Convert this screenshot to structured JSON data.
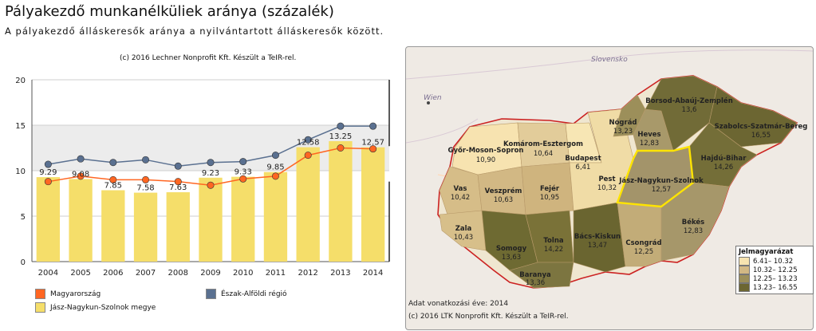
{
  "title": "Pályakezdő munkanélküliek aránya (százalék)",
  "subtitle": "A pályakezdő álláskeresők aránya a nyilvántartott álláskeresők között.",
  "chart_credit": "(c) 2016 Lechner Nonprofit Kft. Készült a TeIR-rel.",
  "chart_data": {
    "type": "bar",
    "categories": [
      "2004",
      "2005",
      "2006",
      "2007",
      "2008",
      "2009",
      "2010",
      "2011",
      "2012",
      "2013",
      "2014"
    ],
    "ylim": [
      0,
      20
    ],
    "yticks": [
      0,
      5,
      10,
      15,
      20
    ],
    "series": [
      {
        "name": "Jász-Nagykun-Szolnok megye",
        "type": "bar",
        "color": "#f5de6a",
        "values": [
          9.29,
          9.08,
          7.85,
          7.58,
          7.63,
          9.23,
          9.33,
          9.85,
          12.58,
          13.25,
          12.57
        ]
      },
      {
        "name": "Magyarország",
        "type": "line",
        "color": "#ff6622",
        "values": [
          8.8,
          9.4,
          9.0,
          9.0,
          8.8,
          8.4,
          9.1,
          9.4,
          11.7,
          12.5,
          12.4
        ]
      },
      {
        "name": "Észak-Alföldi régió",
        "type": "line",
        "color": "#5a7090",
        "values": [
          10.7,
          11.3,
          10.9,
          11.2,
          10.5,
          10.9,
          11.0,
          11.7,
          13.4,
          14.9,
          14.9
        ]
      }
    ],
    "data_labels": [
      "9.29",
      "9.08",
      "7.85",
      "7.58",
      "7.63",
      "9.23",
      "9.33",
      "9.85",
      "12.58",
      "13.25",
      "12.57"
    ]
  },
  "legend": [
    {
      "label": "Magyarország",
      "color": "#ff6622"
    },
    {
      "label": "Észak-Alföldi régió",
      "color": "#5a7090"
    },
    {
      "label": "Jász-Nagykun-Szolnok megye",
      "color": "#f5de6a"
    }
  ],
  "map": {
    "country_labels": [
      "Slovensko",
      "Wien"
    ],
    "counties": [
      {
        "name": "Győr-Moson-Sopron",
        "value": "10,90",
        "color": "#f7e3b0"
      },
      {
        "name": "Komárom-Esztergom",
        "value": "10,64",
        "color": "#e2cc9a"
      },
      {
        "name": "Vas",
        "value": "10,42",
        "color": "#d6bd88"
      },
      {
        "name": "Veszprém",
        "value": "10,63",
        "color": "#d2b884"
      },
      {
        "name": "Fejér",
        "value": "10,95",
        "color": "#cfb47e"
      },
      {
        "name": "Zala",
        "value": "10,43",
        "color": "#d7bf8a"
      },
      {
        "name": "Somogy",
        "value": "13,63",
        "color": "#6e6a32"
      },
      {
        "name": "Tolna",
        "value": "14,22",
        "color": "#7a7238"
      },
      {
        "name": "Baranya",
        "value": "13,36",
        "color": "#7c7540"
      },
      {
        "name": "Budapest",
        "value": "6,41",
        "color": "#f7e6b4"
      },
      {
        "name": "Pest",
        "value": "10,32",
        "color": "#f0dca6"
      },
      {
        "name": "Nógrád",
        "value": "13,23",
        "color": "#9c8f5a"
      },
      {
        "name": "Heves",
        "value": "12,83",
        "color": "#a8996a"
      },
      {
        "name": "Borsod-Abaúj-Zemplén",
        "value": "13,6",
        "color": "#716b37"
      },
      {
        "name": "Szabolcs-Szatmár-Bereg",
        "value": "16,55",
        "color": "#6c6632"
      },
      {
        "name": "Hajdú-Bihar",
        "value": "14,26",
        "color": "#746e38"
      },
      {
        "name": "Jász-Nagykun-Szolnok",
        "value": "12,57",
        "color": "#a3946a"
      },
      {
        "name": "Bács-Kiskun",
        "value": "13,47",
        "color": "#6a6530"
      },
      {
        "name": "Csongrád",
        "value": "12,25",
        "color": "#c2ac78"
      },
      {
        "name": "Békés",
        "value": "12,83",
        "color": "#a6976a"
      }
    ],
    "legend_title": "Jelmagyarázat",
    "legend_items": [
      {
        "label": "6.41– 10.32",
        "color": "#f7e3b0"
      },
      {
        "label": "10.32– 12.25",
        "color": "#d2b884"
      },
      {
        "label": "12.25– 13.23",
        "color": "#9c8f5a"
      },
      {
        "label": "13.23– 16.55",
        "color": "#6c6632"
      }
    ],
    "data_year": "Adat vonatkozási éve: 2014",
    "credit": "(c) 2016 LTK Nonprofit Kft. Készült a TeIR-rel."
  }
}
